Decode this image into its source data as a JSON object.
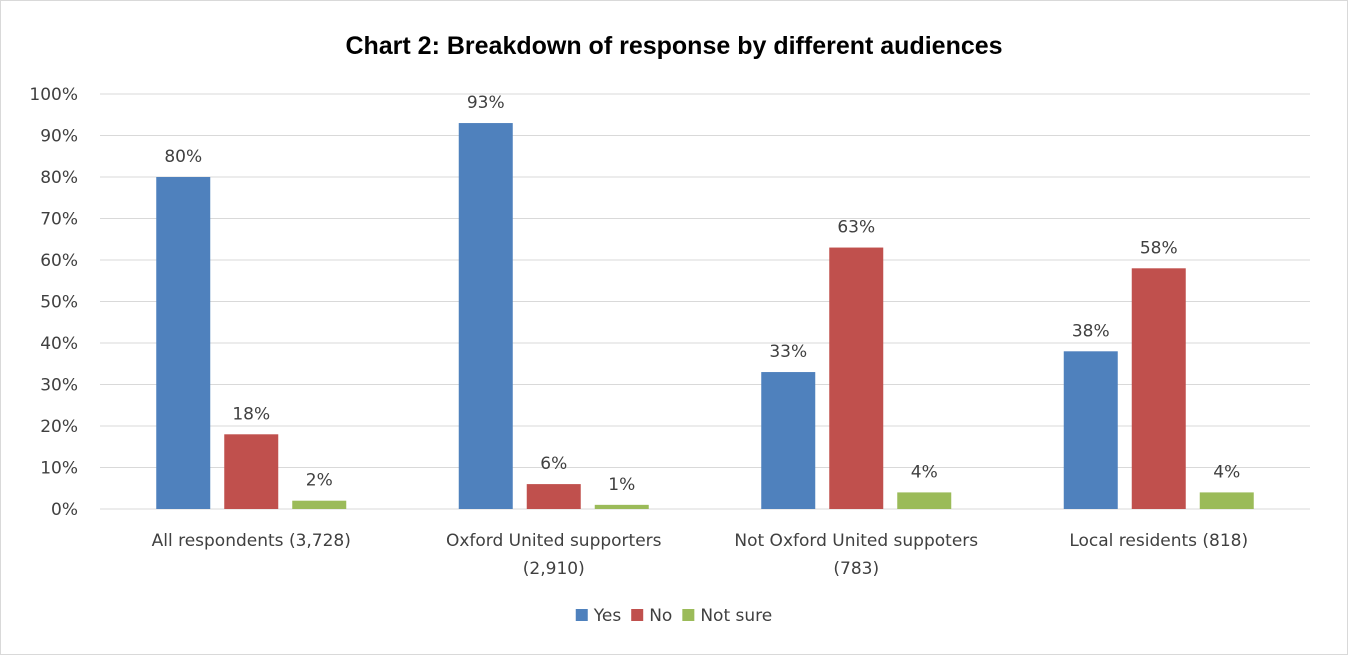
{
  "chart_data": {
    "type": "bar",
    "title": "Chart 2: Breakdown of response by different audiences",
    "xlabel": "",
    "ylabel": "",
    "ylim": [
      0,
      100
    ],
    "y_tick_step": 10,
    "y_tick_format": "percent",
    "grid": true,
    "legend_position": "bottom",
    "categories": [
      [
        "All respondents (3,728)"
      ],
      [
        "Oxford United supporters",
        "(2,910)"
      ],
      [
        "Not Oxford United suppoters",
        "(783)"
      ],
      [
        "Local residents (818)"
      ]
    ],
    "series": [
      {
        "name": "Yes",
        "color": "#4f81bd",
        "values": [
          80,
          93,
          33,
          38
        ]
      },
      {
        "name": "No",
        "color": "#c0504d",
        "values": [
          18,
          6,
          63,
          58
        ]
      },
      {
        "name": "Not sure",
        "color": "#9bbb59",
        "values": [
          2,
          1,
          4,
          4
        ]
      }
    ],
    "data_label_suffix": "%"
  }
}
